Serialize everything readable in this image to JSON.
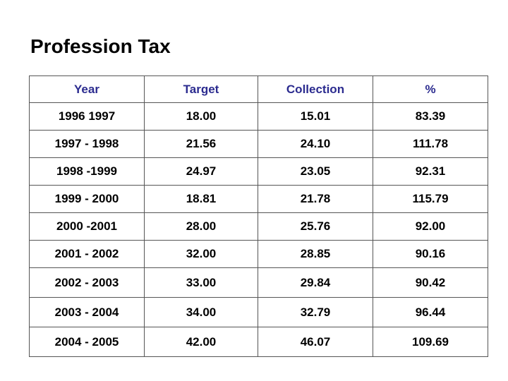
{
  "title": "Profession Tax",
  "table": {
    "headers": [
      "Year",
      "Target",
      "Collection",
      "%"
    ],
    "rows": [
      [
        "1996 1997",
        "18.00",
        "15.01",
        "83.39"
      ],
      [
        "1997 - 1998",
        "21.56",
        "24.10",
        "111.78"
      ],
      [
        "1998 -1999",
        "24.97",
        "23.05",
        "92.31"
      ],
      [
        "1999 - 2000",
        "18.81",
        "21.78",
        "115.79"
      ],
      [
        "2000 -2001",
        "28.00",
        "25.76",
        "92.00"
      ],
      [
        "2001 - 2002",
        "32.00",
        "28.85",
        "90.16"
      ],
      [
        "2002 - 2003",
        "33.00",
        "29.84",
        "90.42"
      ],
      [
        "2003 - 2004",
        "34.00",
        "32.79",
        "96.44"
      ],
      [
        "2004 - 2005",
        "42.00",
        "46.07",
        "109.69"
      ]
    ]
  },
  "colors": {
    "header_text": "#2b2b8f",
    "body_text": "#000000",
    "border": "#555555"
  }
}
